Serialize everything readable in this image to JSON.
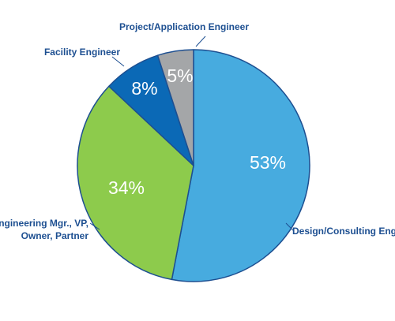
{
  "chart_data": {
    "type": "pie",
    "start_angle_deg": 0,
    "direction": "clockwise",
    "slices": [
      {
        "label": "Design/Consulting Engineer",
        "value": 53,
        "display": "53%",
        "color": "#47abdf"
      },
      {
        "label": "Engineering Mgr., VP, Owner, Partner",
        "value": 34,
        "display": "34%",
        "color": "#8dcb4c"
      },
      {
        "label": "Facility Engineer",
        "value": 8,
        "display": "8%",
        "color": "#0b69b6"
      },
      {
        "label": "Project/Application Engineer",
        "value": 5,
        "display": "5%",
        "color": "#a4a6a8"
      }
    ],
    "label_lines": [
      [
        "Design/Consulting Engineer"
      ],
      [
        "Engineering Mgr., VP,",
        "Owner, Partner"
      ],
      [
        "Facility Engineer"
      ],
      [
        "Project/Application Engineer"
      ]
    ],
    "legend": "none",
    "slice_border_color": "#1d4f91"
  }
}
